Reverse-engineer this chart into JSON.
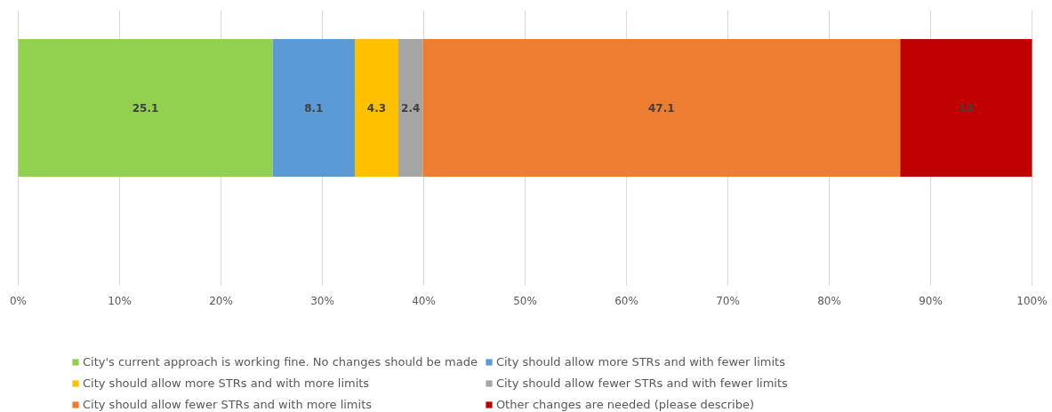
{
  "chart_data": {
    "type": "bar",
    "orientation": "horizontal",
    "stacked": true,
    "categories": [
      null
    ],
    "series": [
      {
        "name": "City's current approach is working fine. No changes should be made",
        "color": "#92d050",
        "values": [
          25.1
        ]
      },
      {
        "name": "City should allow more STRs and with fewer limits",
        "color": "#5b9bd5",
        "values": [
          8.1
        ]
      },
      {
        "name": "City should allow more STRs and with more limits",
        "color": "#ffc000",
        "values": [
          4.3
        ]
      },
      {
        "name": "City should allow fewer STRs and with fewer limits",
        "color": "#a5a5a5",
        "values": [
          2.4
        ]
      },
      {
        "name": "City should allow fewer STRs and with more limits",
        "color": "#ed7d31",
        "values": [
          47.1
        ]
      },
      {
        "name": "Other changes are needed (please describe)",
        "color": "#c00000",
        "values": [
          13
        ]
      }
    ],
    "xlim": [
      0,
      100
    ],
    "xticks": [
      {
        "value": 0,
        "label": "0%"
      },
      {
        "value": 10,
        "label": "10%"
      },
      {
        "value": 20,
        "label": "20%"
      },
      {
        "value": 30,
        "label": "30%"
      },
      {
        "value": 40,
        "label": "40%"
      },
      {
        "value": 50,
        "label": "50%"
      },
      {
        "value": 60,
        "label": "60%"
      },
      {
        "value": 70,
        "label": "70%"
      },
      {
        "value": 80,
        "label": "80%"
      },
      {
        "value": 90,
        "label": "90%"
      },
      {
        "value": 100,
        "label": "100%"
      }
    ],
    "grid": "x",
    "legend": "bottom",
    "data_labels": true
  }
}
